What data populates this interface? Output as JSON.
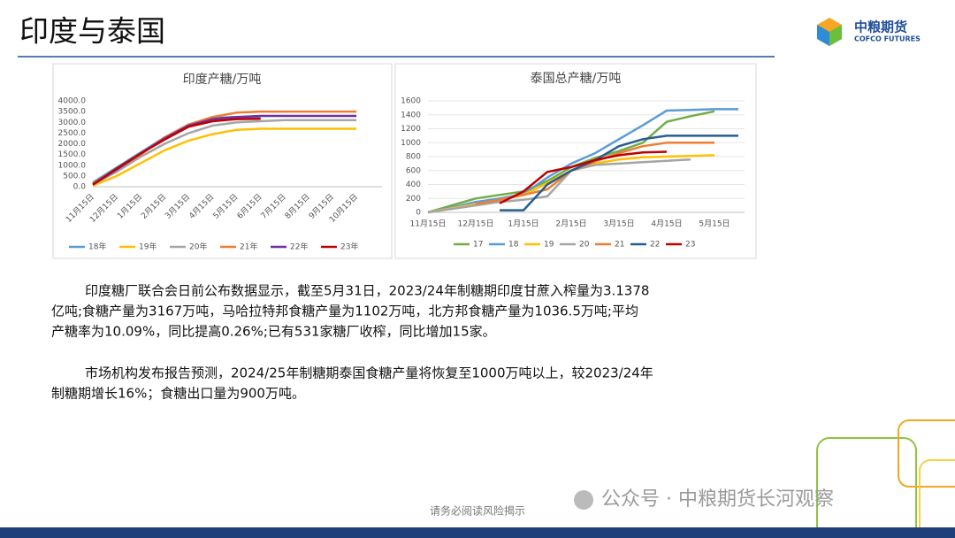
{
  "header": {
    "title": "印度与泰国",
    "logo_name": "中粮期货",
    "logo_en": "COFCO FUTURES"
  },
  "chart_data": [
    {
      "type": "line",
      "title": "印度产糖/万吨",
      "categories": [
        "11月15日",
        "12月15日",
        "1月15日",
        "2月15日",
        "3月15日",
        "4月15日",
        "5月15日",
        "6月15日",
        "7月15日",
        "8月15日",
        "9月15日",
        "10月15日"
      ],
      "ylim": [
        0,
        4000
      ],
      "yticks": [
        {
          "value": 0,
          "label": "0.0"
        },
        {
          "value": 500,
          "label": "500.0"
        },
        {
          "value": 1000,
          "label": "1000.0"
        },
        {
          "value": 1500,
          "label": "1500.0"
        },
        {
          "value": 2000,
          "label": "2000.0"
        },
        {
          "value": 2500,
          "label": "2500.0"
        },
        {
          "value": 3000,
          "label": "3000.0"
        },
        {
          "value": 3500,
          "label": "3500.0"
        },
        {
          "value": 4000,
          "label": "4000.0"
        }
      ],
      "grid": false,
      "legend": "bottom",
      "series": [
        {
          "name": "18年",
          "color": "#5b9bd5",
          "values": [
            200,
            900,
            1600,
            2300,
            2900,
            3200,
            3250,
            3250,
            null,
            null,
            null,
            null
          ]
        },
        {
          "name": "19年",
          "color": "#ffc000",
          "values": [
            50,
            500,
            1100,
            1700,
            2150,
            2450,
            2650,
            2700,
            2700,
            2700,
            2700,
            2700
          ]
        },
        {
          "name": "20年",
          "color": "#a5a5a5",
          "values": [
            100,
            700,
            1400,
            2000,
            2500,
            2850,
            3000,
            3050,
            3100,
            3100,
            3100,
            3100
          ]
        },
        {
          "name": "21年",
          "color": "#ed7d31",
          "values": [
            150,
            800,
            1500,
            2300,
            2900,
            3250,
            3450,
            3500,
            3500,
            3500,
            3500,
            3500
          ]
        },
        {
          "name": "22年",
          "color": "#7030a0",
          "values": [
            100,
            800,
            1550,
            2250,
            2850,
            3150,
            3250,
            3300,
            3300,
            3300,
            3300,
            3300
          ]
        },
        {
          "name": "23年",
          "color": "#c00000",
          "values": [
            100,
            850,
            1550,
            2200,
            2800,
            3050,
            3150,
            3167,
            null,
            null,
            null,
            null
          ]
        }
      ]
    },
    {
      "type": "line",
      "title": "泰国总产糖/万吨",
      "categories": [
        "11月15日",
        null,
        "12月15日",
        null,
        "1月15日",
        null,
        "2月15日",
        null,
        "3月15日",
        null,
        "4月15日",
        null,
        "5月15日",
        null
      ],
      "ylim": [
        0,
        1600
      ],
      "yticks": [
        0,
        200,
        400,
        600,
        800,
        1000,
        1200,
        1400,
        1600
      ],
      "grid": true,
      "legend": "bottom",
      "series": [
        {
          "name": "17",
          "color": "#70ad47",
          "values": [
            0,
            100,
            200,
            250,
            300,
            450,
            650,
            780,
            880,
            1000,
            1300,
            1380,
            1450,
            null
          ]
        },
        {
          "name": "18",
          "color": "#5b9bd5",
          "values": [
            0,
            70,
            150,
            200,
            260,
            500,
            700,
            850,
            1050,
            1250,
            1460,
            1470,
            1480,
            1480
          ]
        },
        {
          "name": "19",
          "color": "#ffc000",
          "values": [
            0,
            60,
            120,
            180,
            250,
            420,
            600,
            700,
            760,
            790,
            800,
            810,
            820,
            null
          ]
        },
        {
          "name": "20",
          "color": "#a5a5a5",
          "values": [
            0,
            50,
            100,
            150,
            180,
            230,
            600,
            680,
            700,
            720,
            740,
            760,
            null,
            null
          ]
        },
        {
          "name": "21",
          "color": "#ed7d31",
          "values": [
            null,
            null,
            120,
            180,
            250,
            330,
            600,
            730,
            850,
            950,
            1000,
            1000,
            1000,
            null
          ]
        },
        {
          "name": "22",
          "color": "#255e91",
          "values": [
            null,
            null,
            null,
            30,
            30,
            400,
            600,
            750,
            950,
            1050,
            1100,
            1100,
            1100,
            1100
          ]
        },
        {
          "name": "23",
          "color": "#c00000",
          "values": [
            null,
            null,
            null,
            130,
            300,
            580,
            650,
            750,
            820,
            860,
            870,
            null,
            null,
            null
          ]
        }
      ]
    }
  ],
  "paragraphs": [
    [
      "印度糖厂联合会日前公布数据显示，截至5月31日，2023/24年制糖期印度甘蔗入榨量为3.1378",
      "亿吨;食糖产量为3167万吨，马哈拉特邦食糖产量为1102万吨，北方邦食糖产量为1036.5万吨;平均",
      "产糖率为10.09%，同比提高0.26%;已有531家糖厂收榨，同比增加15家。"
    ],
    [
      "市场机构发布报告预测，2024/25年制糖期泰国食糖产量将恢复至1000万吨以上，较2023/24年",
      "制糖期增长16%；食糖出口量为900万吨。"
    ]
  ],
  "footer": {
    "note": "请务必阅读风险揭示",
    "watermark": "公众号 · 中粮期货长河观察"
  }
}
